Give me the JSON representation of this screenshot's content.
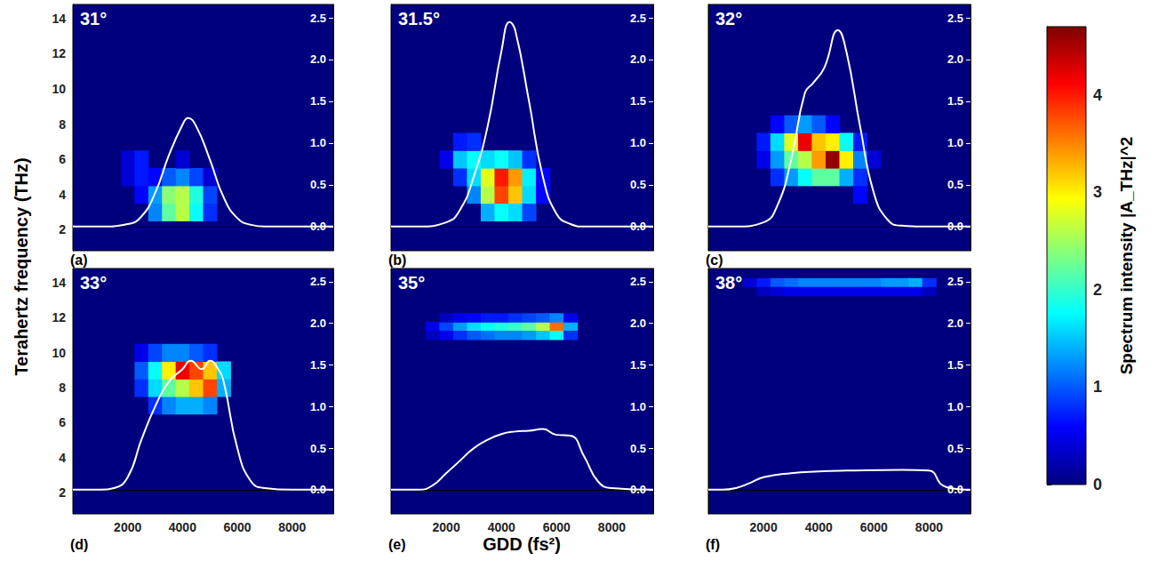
{
  "chart_data": {
    "type": "heatmap",
    "xlabel": "GDD (fs²)",
    "ylabel": "Terahertz frequency (THz)",
    "xlim": [
      0,
      9500
    ],
    "xticks": [
      2000,
      4000,
      6000,
      8000
    ],
    "ylim": [
      0.8,
      14.8
    ],
    "yticks": [
      2,
      4,
      6,
      8,
      10,
      12,
      14
    ],
    "y2lim": [
      -0.29,
      2.66
    ],
    "y2ticks": [
      {
        "value": 0,
        "label": "0.0"
      },
      {
        "value": 0.5,
        "label": "0.5"
      },
      {
        "value": 1,
        "label": "1.0"
      },
      {
        "value": 1.5,
        "label": "1.5"
      },
      {
        "value": 2,
        "label": "2.0"
      },
      {
        "value": 2.5,
        "label": "2.5"
      }
    ],
    "colorbar": {
      "label": "Spectrum intensity |A_THz|^2",
      "range": [
        0,
        4.7
      ],
      "ticks": [
        0,
        1,
        2,
        3,
        4
      ]
    },
    "panels": [
      {
        "letter": "(a)",
        "title": "31°",
        "cells": [
          [
            2000,
            5,
            0.4
          ],
          [
            2000,
            6,
            0.4
          ],
          [
            2500,
            4,
            0.6
          ],
          [
            2500,
            5,
            0.7
          ],
          [
            2500,
            6,
            0.7
          ],
          [
            3000,
            3,
            1.2
          ],
          [
            3000,
            4,
            1.3
          ],
          [
            3000,
            5,
            0.6
          ],
          [
            3500,
            3,
            2.2
          ],
          [
            3500,
            4,
            2.4
          ],
          [
            3500,
            5,
            1.0
          ],
          [
            4000,
            3,
            2.6
          ],
          [
            4000,
            4,
            2.6
          ],
          [
            4000,
            5,
            1.2
          ],
          [
            4000,
            6,
            0.4
          ],
          [
            4500,
            3,
            1.8
          ],
          [
            4500,
            4,
            1.9
          ],
          [
            4500,
            5,
            0.9
          ],
          [
            5000,
            3,
            0.8
          ],
          [
            5000,
            4,
            0.9
          ],
          [
            5000,
            5,
            0.4
          ]
        ],
        "series": [
          {
            "type": "line",
            "axis": "y2",
            "color": "#ffffff",
            "x": [
              0,
              1000,
              2000,
              2500,
              3000,
              3500,
              4000,
              4200,
              4500,
              5000,
              5500,
              6000,
              6500,
              7000,
              8000,
              9500
            ],
            "values": [
              0,
              0,
              0.03,
              0.12,
              0.4,
              0.85,
              1.22,
              1.3,
              1.2,
              0.8,
              0.35,
              0.1,
              0.02,
              0,
              0,
              0
            ]
          }
        ]
      },
      {
        "letter": "(b)",
        "title": "31.5°",
        "cells": [
          [
            2000,
            6,
            0.5
          ],
          [
            2500,
            5,
            0.8
          ],
          [
            2500,
            6,
            1.5
          ],
          [
            2500,
            7,
            0.7
          ],
          [
            3000,
            4,
            1.2
          ],
          [
            3000,
            5,
            1.6
          ],
          [
            3000,
            6,
            1.8
          ],
          [
            3000,
            7,
            0.8
          ],
          [
            3500,
            3,
            1.4
          ],
          [
            3500,
            4,
            2.6
          ],
          [
            3500,
            5,
            2.8
          ],
          [
            3500,
            6,
            1.6
          ],
          [
            4000,
            3,
            1.8
          ],
          [
            4000,
            4,
            3.8
          ],
          [
            4000,
            5,
            4.0
          ],
          [
            4000,
            6,
            1.8
          ],
          [
            4500,
            3,
            1.6
          ],
          [
            4500,
            4,
            3.2
          ],
          [
            4500,
            5,
            3.4
          ],
          [
            4500,
            6,
            1.5
          ],
          [
            5000,
            3,
            0.9
          ],
          [
            5000,
            4,
            1.6
          ],
          [
            5000,
            5,
            1.7
          ],
          [
            5000,
            6,
            0.8
          ],
          [
            5500,
            4,
            0.6
          ],
          [
            5500,
            5,
            0.6
          ]
        ],
        "series": [
          {
            "type": "line",
            "axis": "y2",
            "color": "#ffffff",
            "x": [
              0,
              1000,
              2000,
              2500,
              3000,
              3500,
              4000,
              4300,
              4500,
              5000,
              5500,
              6000,
              6500,
              7000,
              8000,
              9500
            ],
            "values": [
              0,
              0,
              0.05,
              0.2,
              0.6,
              1.2,
              2.1,
              2.45,
              2.35,
              1.5,
              0.6,
              0.15,
              0.03,
              0,
              0,
              0
            ]
          }
        ]
      },
      {
        "letter": "(c)",
        "title": "32°",
        "cells": [
          [
            2000,
            6,
            0.5
          ],
          [
            2000,
            7,
            0.7
          ],
          [
            2500,
            5,
            0.8
          ],
          [
            2500,
            6,
            1.3
          ],
          [
            2500,
            7,
            1.6
          ],
          [
            2500,
            8,
            0.6
          ],
          [
            3000,
            5,
            1.3
          ],
          [
            3000,
            6,
            2.2
          ],
          [
            3000,
            7,
            2.8
          ],
          [
            3000,
            8,
            1.0
          ],
          [
            3500,
            5,
            1.8
          ],
          [
            3500,
            6,
            2.6
          ],
          [
            3500,
            7,
            4.2
          ],
          [
            3500,
            8,
            1.3
          ],
          [
            4000,
            5,
            2.2
          ],
          [
            4000,
            6,
            3.4
          ],
          [
            4000,
            7,
            3.2
          ],
          [
            4000,
            8,
            1.0
          ],
          [
            4500,
            5,
            2.2
          ],
          [
            4500,
            6,
            4.6
          ],
          [
            4500,
            7,
            3.0
          ],
          [
            4500,
            8,
            0.6
          ],
          [
            5000,
            5,
            1.4
          ],
          [
            5000,
            6,
            3.0
          ],
          [
            5000,
            7,
            1.8
          ],
          [
            5500,
            4,
            0.6
          ],
          [
            5500,
            5,
            0.8
          ],
          [
            5500,
            6,
            1.2
          ],
          [
            5500,
            7,
            0.7
          ],
          [
            6000,
            6,
            0.4
          ]
        ],
        "series": [
          {
            "type": "line",
            "axis": "y2",
            "color": "#ffffff",
            "x": [
              0,
              1000,
              2000,
              2500,
              3000,
              3500,
              3800,
              4200,
              4700,
              5000,
              5500,
              6000,
              6500,
              7000,
              8000,
              9500
            ],
            "values": [
              0,
              0,
              0.05,
              0.25,
              0.8,
              1.6,
              1.72,
              1.9,
              2.35,
              2.1,
              1.2,
              0.4,
              0.08,
              0.01,
              0,
              0
            ]
          }
        ]
      },
      {
        "letter": "(d)",
        "title": "33°",
        "cells": [
          [
            2500,
            8,
            0.8
          ],
          [
            2500,
            9,
            1.0
          ],
          [
            2500,
            10,
            0.5
          ],
          [
            3000,
            7,
            0.8
          ],
          [
            3000,
            8,
            1.6
          ],
          [
            3000,
            9,
            1.8
          ],
          [
            3000,
            10,
            0.9
          ],
          [
            3500,
            7,
            1.2
          ],
          [
            3500,
            8,
            2.2
          ],
          [
            3500,
            9,
            3.0
          ],
          [
            3500,
            10,
            1.2
          ],
          [
            4000,
            7,
            1.4
          ],
          [
            4000,
            8,
            2.6
          ],
          [
            4000,
            9,
            4.2
          ],
          [
            4000,
            10,
            1.2
          ],
          [
            4500,
            7,
            1.4
          ],
          [
            4500,
            8,
            3.2
          ],
          [
            4500,
            9,
            3.8
          ],
          [
            4500,
            10,
            1.0
          ],
          [
            5000,
            7,
            1.2
          ],
          [
            5000,
            8,
            3.8
          ],
          [
            5000,
            9,
            3.2
          ],
          [
            5000,
            10,
            0.8
          ],
          [
            5500,
            8,
            1.4
          ],
          [
            5500,
            9,
            1.6
          ]
        ],
        "series": [
          {
            "type": "line",
            "axis": "y2",
            "color": "#ffffff",
            "x": [
              0,
              1000,
              1500,
              2000,
              2500,
              3000,
              3500,
              4000,
              4300,
              4700,
              5000,
              5300,
              5500,
              6000,
              6500,
              7000,
              8000,
              9500
            ],
            "values": [
              0,
              0,
              0.02,
              0.15,
              0.6,
              1.0,
              1.3,
              1.45,
              1.55,
              1.45,
              1.55,
              1.45,
              1.3,
              0.5,
              0.1,
              0.02,
              0,
              0
            ]
          }
        ]
      },
      {
        "letter": "(e)",
        "title": "35°",
        "cells": [
          [
            1500,
            11.5,
            0.5
          ],
          [
            2000,
            11.5,
            0.9
          ],
          [
            2500,
            11.5,
            1.3
          ],
          [
            3000,
            11.5,
            1.6
          ],
          [
            3500,
            11.5,
            1.8
          ],
          [
            4000,
            11.5,
            1.9
          ],
          [
            4500,
            11.5,
            2.0
          ],
          [
            5000,
            11.5,
            2.2
          ],
          [
            5500,
            11.5,
            2.6
          ],
          [
            6000,
            11.5,
            3.6
          ],
          [
            6500,
            11.5,
            1.4
          ],
          [
            1500,
            11,
            0.3
          ],
          [
            2000,
            11,
            0.5
          ],
          [
            2500,
            11,
            0.8
          ],
          [
            3000,
            11,
            1.0
          ],
          [
            3500,
            11,
            1.1
          ],
          [
            4000,
            11,
            1.2
          ],
          [
            4500,
            11,
            1.2
          ],
          [
            5000,
            11,
            1.3
          ],
          [
            5500,
            11,
            1.5
          ],
          [
            6000,
            11,
            1.8
          ],
          [
            6500,
            11,
            0.8
          ],
          [
            2000,
            12,
            0.3
          ],
          [
            2500,
            12,
            0.5
          ],
          [
            3000,
            12,
            0.6
          ],
          [
            3500,
            12,
            0.7
          ],
          [
            4000,
            12,
            0.7
          ],
          [
            4500,
            12,
            0.8
          ],
          [
            5000,
            12,
            0.9
          ],
          [
            5500,
            12,
            1.0
          ],
          [
            6000,
            12,
            1.2
          ],
          [
            6500,
            12,
            0.5
          ]
        ],
        "series": [
          {
            "type": "line",
            "axis": "y2",
            "color": "#ffffff",
            "x": [
              0,
              1000,
              1500,
              2000,
              2500,
              3000,
              3500,
              4000,
              4500,
              5000,
              5500,
              6000,
              6500,
              7000,
              7500,
              8000,
              9500
            ],
            "values": [
              0,
              0,
              0.05,
              0.2,
              0.35,
              0.5,
              0.6,
              0.67,
              0.7,
              0.71,
              0.73,
              0.66,
              0.65,
              0.4,
              0.1,
              0.02,
              0
            ]
          }
        ]
      },
      {
        "letter": "(f)",
        "title": "38°",
        "cells": [
          [
            1500,
            14,
            0.4
          ],
          [
            2000,
            14,
            0.7
          ],
          [
            2500,
            14,
            1.0
          ],
          [
            3000,
            14,
            1.1
          ],
          [
            3500,
            14,
            1.2
          ],
          [
            4000,
            14,
            1.2
          ],
          [
            4500,
            14,
            1.2
          ],
          [
            5000,
            14,
            1.2
          ],
          [
            5500,
            14,
            1.2
          ],
          [
            6000,
            14,
            1.2
          ],
          [
            6500,
            14,
            1.3
          ],
          [
            7000,
            14,
            1.3
          ],
          [
            7500,
            14,
            1.4
          ],
          [
            8000,
            14,
            0.8
          ],
          [
            2000,
            13.5,
            0.3
          ],
          [
            2500,
            13.5,
            0.4
          ],
          [
            3000,
            13.5,
            0.5
          ],
          [
            3500,
            13.5,
            0.5
          ],
          [
            4000,
            13.5,
            0.5
          ],
          [
            4500,
            13.5,
            0.5
          ],
          [
            5000,
            13.5,
            0.5
          ],
          [
            5500,
            13.5,
            0.5
          ],
          [
            6000,
            13.5,
            0.5
          ],
          [
            6500,
            13.5,
            0.5
          ],
          [
            7000,
            13.5,
            0.5
          ],
          [
            7500,
            13.5,
            0.5
          ],
          [
            8000,
            13.5,
            0.3
          ]
        ],
        "series": [
          {
            "type": "line",
            "axis": "y2",
            "color": "#ffffff",
            "x": [
              0,
              500,
              1000,
              1500,
              2000,
              3000,
              4000,
              5000,
              7000,
              8000,
              8500,
              9000,
              9500
            ],
            "values": [
              0,
              0,
              0.02,
              0.08,
              0.15,
              0.2,
              0.22,
              0.23,
              0.24,
              0.23,
              0.05,
              0.01,
              0
            ]
          }
        ]
      }
    ]
  }
}
